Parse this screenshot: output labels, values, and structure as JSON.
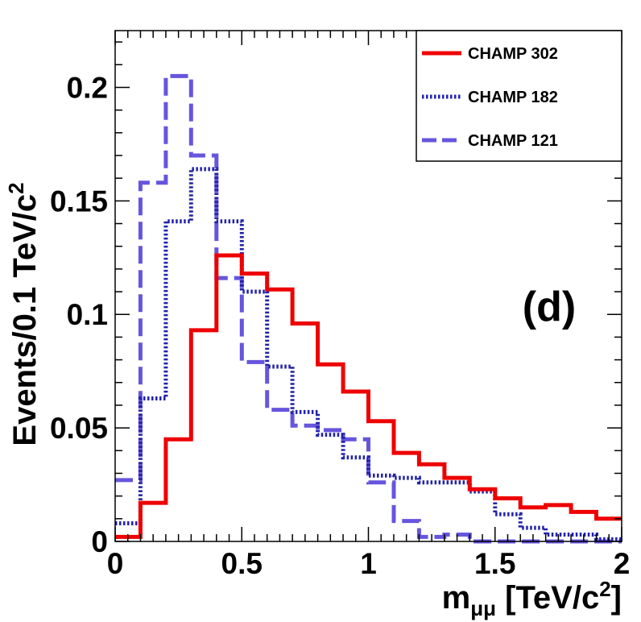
{
  "chart_data": {
    "type": "line",
    "style": "step-histogram",
    "title": "",
    "panel_label": "(d)",
    "xlabel": {
      "main": "m",
      "sub": "μμ",
      "unit_open": " [TeV/c",
      "sup": "2",
      "unit_close": "]"
    },
    "ylabel": {
      "main": "Events/0.1 TeV/c",
      "sup": "2"
    },
    "xlim": [
      0,
      2
    ],
    "ylim": [
      0,
      0.225
    ],
    "x_ticks": [
      0,
      0.5,
      1,
      1.5,
      2
    ],
    "x_tick_labels": [
      "0",
      "0.5",
      "1",
      "1.5",
      "2"
    ],
    "y_ticks": [
      0,
      0.05,
      0.1,
      0.15,
      0.2
    ],
    "y_tick_labels": [
      "0",
      "0.05",
      "0.1",
      "0.15",
      "0.2"
    ],
    "bin_edges": [
      0,
      0.1,
      0.2,
      0.3,
      0.4,
      0.5,
      0.6,
      0.7,
      0.8,
      0.9,
      1.0,
      1.1,
      1.2,
      1.3,
      1.4,
      1.5,
      1.6,
      1.7,
      1.8,
      1.9,
      2.0
    ],
    "legend_position": "top-right",
    "series": [
      {
        "name": "CHAMP 302",
        "color": "#ee0000",
        "style": "solid",
        "values": [
          0.002,
          0.017,
          0.045,
          0.093,
          0.126,
          0.118,
          0.111,
          0.096,
          0.078,
          0.066,
          0.053,
          0.039,
          0.034,
          0.028,
          0.023,
          0.019,
          0.015,
          0.016,
          0.013,
          0.01
        ]
      },
      {
        "name": "CHAMP 182",
        "color": "#2222aa",
        "style": "dotted",
        "values": [
          0.008,
          0.063,
          0.141,
          0.164,
          0.141,
          0.11,
          0.077,
          0.057,
          0.047,
          0.037,
          0.029,
          0.028,
          0.026,
          0.026,
          0.022,
          0.012,
          0.006,
          0.003,
          0.003,
          0.001
        ]
      },
      {
        "name": "CHAMP 121",
        "color": "#6655dd",
        "style": "dashed",
        "values": [
          0.027,
          0.158,
          0.205,
          0.17,
          0.116,
          0.079,
          0.058,
          0.051,
          0.049,
          0.045,
          0.026,
          0.009,
          0.002,
          0.003,
          0.0,
          0.0,
          0.0,
          0.0,
          0.0,
          0.0
        ]
      }
    ]
  }
}
